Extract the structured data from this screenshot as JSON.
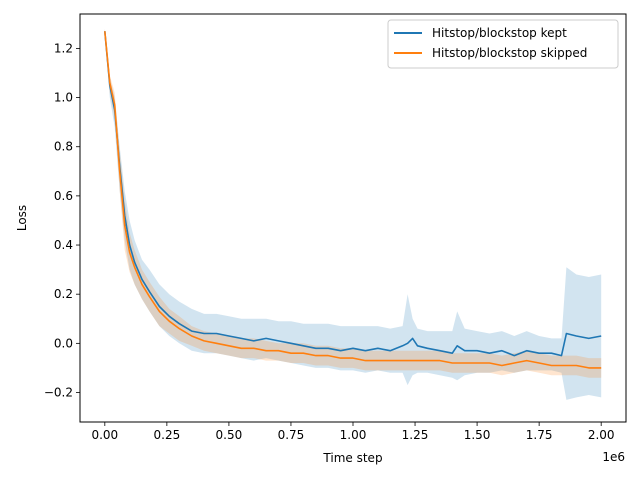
{
  "chart_data": {
    "type": "line",
    "title": "",
    "xlabel": "Time step",
    "ylabel": "Loss",
    "x_offset_label": "1e6",
    "xlim": [
      -0.1,
      2.1
    ],
    "ylim": [
      -0.32,
      1.34
    ],
    "x_ticks": [
      0.0,
      0.25,
      0.5,
      0.75,
      1.0,
      1.25,
      1.5,
      1.75,
      2.0
    ],
    "x_tick_labels": [
      "0.00",
      "0.25",
      "0.50",
      "0.75",
      "1.00",
      "1.25",
      "1.50",
      "1.75",
      "2.00"
    ],
    "y_ticks": [
      -0.2,
      0.0,
      0.2,
      0.4,
      0.6,
      0.8,
      1.0,
      1.2
    ],
    "y_tick_labels": [
      "−0.2",
      "0.0",
      "0.2",
      "0.4",
      "0.6",
      "0.8",
      "1.0",
      "1.2"
    ],
    "grid": false,
    "legend_position": "top-right",
    "series": [
      {
        "name": "Hitstop/blockstop kept",
        "color": "#1f77b4",
        "x": [
          0.0,
          0.02,
          0.04,
          0.06,
          0.08,
          0.1,
          0.12,
          0.15,
          0.18,
          0.22,
          0.26,
          0.3,
          0.35,
          0.4,
          0.45,
          0.5,
          0.55,
          0.6,
          0.65,
          0.7,
          0.75,
          0.8,
          0.85,
          0.9,
          0.95,
          1.0,
          1.05,
          1.1,
          1.15,
          1.2,
          1.22,
          1.24,
          1.26,
          1.3,
          1.35,
          1.4,
          1.42,
          1.45,
          1.5,
          1.55,
          1.6,
          1.65,
          1.7,
          1.75,
          1.8,
          1.84,
          1.86,
          1.9,
          1.95,
          2.0
        ],
        "y": [
          1.27,
          1.05,
          0.95,
          0.72,
          0.52,
          0.4,
          0.33,
          0.26,
          0.21,
          0.15,
          0.11,
          0.08,
          0.05,
          0.04,
          0.04,
          0.03,
          0.02,
          0.01,
          0.02,
          0.01,
          0.0,
          -0.01,
          -0.02,
          -0.02,
          -0.03,
          -0.02,
          -0.03,
          -0.02,
          -0.03,
          -0.01,
          0.0,
          0.02,
          -0.01,
          -0.02,
          -0.03,
          -0.04,
          -0.01,
          -0.03,
          -0.03,
          -0.04,
          -0.03,
          -0.05,
          -0.03,
          -0.04,
          -0.04,
          -0.05,
          0.04,
          0.03,
          0.02,
          0.03
        ],
        "band_upper": [
          1.28,
          1.08,
          1.0,
          0.8,
          0.62,
          0.5,
          0.42,
          0.34,
          0.3,
          0.24,
          0.2,
          0.17,
          0.14,
          0.12,
          0.12,
          0.11,
          0.1,
          0.1,
          0.1,
          0.09,
          0.09,
          0.08,
          0.08,
          0.08,
          0.07,
          0.07,
          0.07,
          0.07,
          0.06,
          0.07,
          0.2,
          0.1,
          0.06,
          0.05,
          0.05,
          0.05,
          0.13,
          0.06,
          0.05,
          0.04,
          0.05,
          0.03,
          0.05,
          0.03,
          0.02,
          0.02,
          0.31,
          0.28,
          0.27,
          0.28
        ],
        "band_lower": [
          1.26,
          1.0,
          0.88,
          0.62,
          0.42,
          0.3,
          0.24,
          0.18,
          0.13,
          0.07,
          0.03,
          0.0,
          -0.03,
          -0.04,
          -0.04,
          -0.05,
          -0.06,
          -0.07,
          -0.06,
          -0.07,
          -0.08,
          -0.09,
          -0.1,
          -0.1,
          -0.11,
          -0.11,
          -0.12,
          -0.11,
          -0.12,
          -0.12,
          -0.17,
          -0.13,
          -0.12,
          -0.12,
          -0.13,
          -0.14,
          -0.15,
          -0.13,
          -0.12,
          -0.12,
          -0.11,
          -0.12,
          -0.11,
          -0.11,
          -0.11,
          -0.12,
          -0.23,
          -0.22,
          -0.21,
          -0.22
        ]
      },
      {
        "name": "Hitstop/blockstop skipped",
        "color": "#ff7f0e",
        "x": [
          0.0,
          0.02,
          0.04,
          0.06,
          0.08,
          0.1,
          0.12,
          0.15,
          0.18,
          0.22,
          0.26,
          0.3,
          0.35,
          0.4,
          0.45,
          0.5,
          0.55,
          0.6,
          0.65,
          0.7,
          0.75,
          0.8,
          0.85,
          0.9,
          0.95,
          1.0,
          1.05,
          1.1,
          1.15,
          1.2,
          1.25,
          1.3,
          1.35,
          1.4,
          1.45,
          1.5,
          1.55,
          1.6,
          1.65,
          1.7,
          1.75,
          1.8,
          1.85,
          1.9,
          1.95,
          2.0
        ],
        "y": [
          1.27,
          1.06,
          0.97,
          0.7,
          0.48,
          0.37,
          0.31,
          0.24,
          0.19,
          0.13,
          0.09,
          0.06,
          0.03,
          0.01,
          0.0,
          -0.01,
          -0.02,
          -0.02,
          -0.03,
          -0.03,
          -0.04,
          -0.04,
          -0.05,
          -0.05,
          -0.06,
          -0.06,
          -0.07,
          -0.07,
          -0.07,
          -0.07,
          -0.07,
          -0.07,
          -0.07,
          -0.08,
          -0.08,
          -0.08,
          -0.08,
          -0.09,
          -0.08,
          -0.07,
          -0.08,
          -0.09,
          -0.09,
          -0.09,
          -0.1,
          -0.1
        ],
        "band_upper": [
          1.28,
          1.09,
          1.02,
          0.78,
          0.58,
          0.45,
          0.38,
          0.3,
          0.25,
          0.19,
          0.14,
          0.11,
          0.07,
          0.05,
          0.04,
          0.03,
          0.02,
          0.02,
          0.01,
          0.0,
          0.0,
          0.0,
          -0.01,
          -0.01,
          -0.02,
          -0.02,
          -0.03,
          -0.03,
          -0.03,
          -0.03,
          -0.03,
          -0.03,
          -0.03,
          -0.04,
          -0.04,
          -0.04,
          -0.04,
          -0.05,
          -0.04,
          -0.03,
          -0.04,
          -0.05,
          -0.05,
          -0.05,
          -0.06,
          -0.06
        ],
        "band_lower": [
          1.26,
          1.02,
          0.92,
          0.62,
          0.38,
          0.29,
          0.24,
          0.18,
          0.13,
          0.07,
          0.04,
          0.01,
          -0.01,
          -0.03,
          -0.04,
          -0.05,
          -0.06,
          -0.06,
          -0.07,
          -0.07,
          -0.08,
          -0.08,
          -0.09,
          -0.09,
          -0.1,
          -0.1,
          -0.11,
          -0.11,
          -0.11,
          -0.11,
          -0.11,
          -0.11,
          -0.11,
          -0.12,
          -0.12,
          -0.12,
          -0.12,
          -0.13,
          -0.12,
          -0.11,
          -0.12,
          -0.13,
          -0.13,
          -0.13,
          -0.14,
          -0.14
        ]
      }
    ]
  }
}
